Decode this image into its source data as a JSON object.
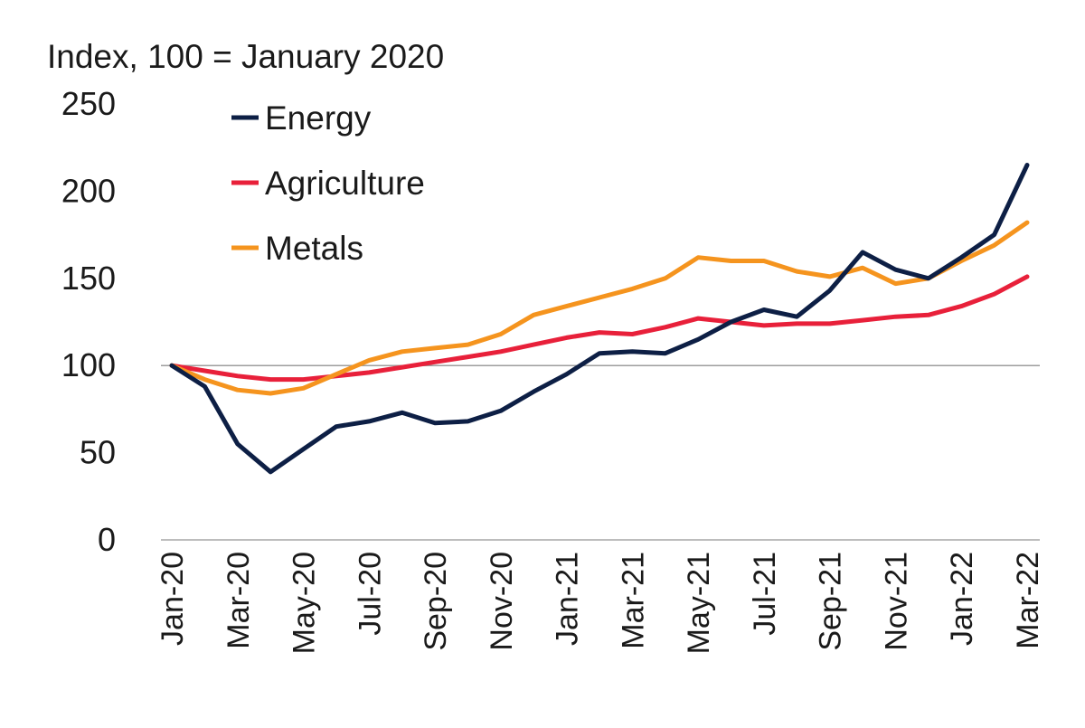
{
  "chart_data": {
    "type": "line",
    "title": "",
    "ylabel": "Index, 100 = January 2020",
    "xlabel": "",
    "ylim": [
      0,
      250
    ],
    "yticks": [
      0,
      50,
      100,
      150,
      200,
      250
    ],
    "reference_line": 100,
    "grid": false,
    "legend_position": "top-left",
    "x": [
      "Jan-20",
      "Feb-20",
      "Mar-20",
      "Apr-20",
      "May-20",
      "Jun-20",
      "Jul-20",
      "Aug-20",
      "Sep-20",
      "Oct-20",
      "Nov-20",
      "Dec-20",
      "Jan-21",
      "Feb-21",
      "Mar-21",
      "Apr-21",
      "May-21",
      "Jun-21",
      "Jul-21",
      "Aug-21",
      "Sep-21",
      "Oct-21",
      "Nov-21",
      "Dec-21",
      "Jan-22",
      "Feb-22",
      "Mar-22"
    ],
    "x_tick_labels": [
      "Jan-20",
      "Mar-20",
      "May-20",
      "Jul-20",
      "Sep-20",
      "Nov-20",
      "Jan-21",
      "Mar-21",
      "May-21",
      "Jul-21",
      "Sep-21",
      "Nov-21",
      "Jan-22",
      "Mar-22"
    ],
    "series": [
      {
        "name": "Energy",
        "color": "#0d1f45",
        "values": [
          100,
          88,
          55,
          39,
          52,
          65,
          68,
          73,
          67,
          68,
          74,
          85,
          95,
          107,
          108,
          107,
          115,
          125,
          132,
          128,
          143,
          165,
          155,
          150,
          162,
          175,
          215
        ]
      },
      {
        "name": "Agriculture",
        "color": "#e8203a",
        "values": [
          100,
          97,
          94,
          92,
          92,
          94,
          96,
          99,
          102,
          105,
          108,
          112,
          116,
          119,
          118,
          122,
          127,
          125,
          123,
          124,
          124,
          126,
          128,
          129,
          134,
          141,
          151
        ]
      },
      {
        "name": "Metals",
        "color": "#f5941e",
        "values": [
          100,
          92,
          86,
          84,
          87,
          95,
          103,
          108,
          110,
          112,
          118,
          129,
          134,
          139,
          144,
          150,
          162,
          160,
          160,
          154,
          151,
          156,
          147,
          150,
          160,
          169,
          182
        ]
      }
    ]
  }
}
